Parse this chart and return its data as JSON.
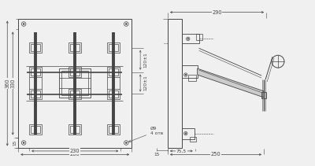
{
  "fig_width": 4.0,
  "fig_height": 2.11,
  "dpi": 100,
  "bg_color": "#f0f0f0",
  "lc": "#444444",
  "dc": "#444444",
  "dims_front": {
    "d260": "260",
    "d230": "230",
    "d15b": "15",
    "d360": "360",
    "d330": "330",
    "d15l": "15",
    "d120_1": "120±1",
    "d120_2": "120±1",
    "do9": "Ø9",
    "d4otv": "4 отв"
  },
  "dims_side": {
    "d290": "290",
    "d250": "250",
    "d75": "75,5",
    "d15": "15"
  }
}
